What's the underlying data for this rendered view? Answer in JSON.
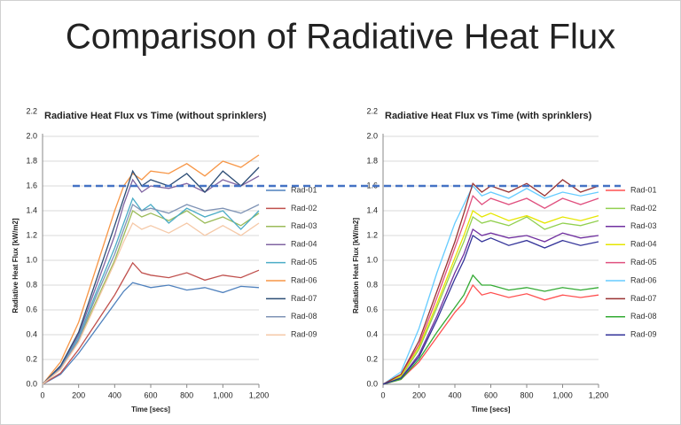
{
  "title": "Comparison of Radiative Heat Flux",
  "threshold_line": {
    "value": 1.6,
    "color": "#4472c4"
  },
  "chart_data": [
    {
      "type": "line",
      "title": "Radiative Heat Flux vs Time (without sprinklers)",
      "x_label": "Time [secs]",
      "y_label": "Radiative Heat Flux [kW/m2]",
      "xlim": [
        0,
        1200
      ],
      "xticks": [
        0,
        200,
        400,
        600,
        800,
        {
          "value": 1000,
          "label": "1,000"
        },
        {
          "value": 1200,
          "label": "1,200"
        }
      ],
      "ylim": [
        0,
        2.2
      ],
      "yticks": [
        {
          "value": 0,
          "label": "0.0"
        },
        {
          "value": 0.2,
          "label": "0.2"
        },
        {
          "value": 0.4,
          "label": "0.4"
        },
        {
          "value": 0.6,
          "label": "0.6"
        },
        {
          "value": 0.8,
          "label": "0.8"
        },
        {
          "value": 1.0,
          "label": "1.0"
        },
        {
          "value": 1.2,
          "label": "1.2"
        },
        {
          "value": 1.4,
          "label": "1.4"
        },
        {
          "value": 1.6,
          "label": "1.6"
        },
        {
          "value": 1.8,
          "label": "1.8"
        },
        {
          "value": 2.0,
          "label": "2.0"
        },
        2.2
      ],
      "grid": true,
      "legend": "right",
      "x": [
        0,
        100,
        200,
        300,
        400,
        450,
        500,
        550,
        600,
        700,
        800,
        900,
        1000,
        1100,
        1200
      ],
      "series": [
        {
          "name": "Rad-01",
          "color": "#4f81bd",
          "values": [
            0,
            0.08,
            0.25,
            0.45,
            0.65,
            0.75,
            0.82,
            0.8,
            0.78,
            0.8,
            0.76,
            0.78,
            0.74,
            0.79,
            0.78
          ]
        },
        {
          "name": "Rad-02",
          "color": "#c0504d",
          "values": [
            0,
            0.09,
            0.28,
            0.5,
            0.72,
            0.85,
            0.98,
            0.9,
            0.88,
            0.86,
            0.9,
            0.84,
            0.88,
            0.86,
            0.92
          ]
        },
        {
          "name": "Rad-03",
          "color": "#9bbb59",
          "values": [
            0,
            0.12,
            0.35,
            0.68,
            1.0,
            1.2,
            1.4,
            1.35,
            1.38,
            1.32,
            1.4,
            1.3,
            1.35,
            1.28,
            1.38
          ]
        },
        {
          "name": "Rad-04",
          "color": "#8064a2",
          "values": [
            0,
            0.14,
            0.4,
            0.8,
            1.2,
            1.45,
            1.65,
            1.55,
            1.6,
            1.58,
            1.62,
            1.55,
            1.65,
            1.6,
            1.68
          ]
        },
        {
          "name": "Rad-05",
          "color": "#4bacc6",
          "values": [
            0,
            0.13,
            0.38,
            0.75,
            1.1,
            1.3,
            1.5,
            1.4,
            1.45,
            1.3,
            1.42,
            1.35,
            1.4,
            1.25,
            1.4
          ]
        },
        {
          "name": "Rad-06",
          "color": "#f79646",
          "values": [
            0,
            0.18,
            0.5,
            0.95,
            1.4,
            1.6,
            1.7,
            1.65,
            1.72,
            1.7,
            1.78,
            1.68,
            1.8,
            1.75,
            1.85
          ]
        },
        {
          "name": "Rad-07",
          "color": "#2c4d75",
          "values": [
            0,
            0.15,
            0.42,
            0.85,
            1.28,
            1.5,
            1.72,
            1.6,
            1.65,
            1.6,
            1.7,
            1.55,
            1.72,
            1.6,
            1.75
          ]
        },
        {
          "name": "Rad-08",
          "color": "#7f93b5",
          "values": [
            0,
            0.13,
            0.36,
            0.72,
            1.05,
            1.25,
            1.45,
            1.4,
            1.42,
            1.38,
            1.45,
            1.4,
            1.42,
            1.38,
            1.45
          ]
        },
        {
          "name": "Rad-09",
          "color": "#f5c9a8",
          "values": [
            0,
            0.12,
            0.34,
            0.66,
            0.98,
            1.15,
            1.3,
            1.25,
            1.28,
            1.22,
            1.3,
            1.2,
            1.28,
            1.2,
            1.3
          ]
        }
      ]
    },
    {
      "type": "line",
      "title": "Radiative Heat Flux vs Time  (with sprinklers)",
      "x_label": "Time [secs]",
      "y_label": "Radiation Heat Flux [kW/m2]",
      "xlim": [
        0,
        1200
      ],
      "xticks": [
        0,
        200,
        400,
        600,
        800,
        {
          "value": 1000,
          "label": "1,000"
        },
        {
          "value": 1200,
          "label": "1,200"
        }
      ],
      "ylim": [
        0,
        2.2
      ],
      "yticks": [
        {
          "value": 0,
          "label": "0.0"
        },
        {
          "value": 0.2,
          "label": "0.2"
        },
        {
          "value": 0.4,
          "label": "0.4"
        },
        {
          "value": 0.6,
          "label": "0.6"
        },
        {
          "value": 0.8,
          "label": "0.8"
        },
        {
          "value": 1.0,
          "label": "1.0"
        },
        {
          "value": 1.2,
          "label": "1.2"
        },
        {
          "value": 1.4,
          "label": "1.4"
        },
        {
          "value": 1.6,
          "label": "1.6"
        },
        {
          "value": 1.8,
          "label": "1.8"
        },
        {
          "value": 2.0,
          "label": "2.0"
        },
        2.2
      ],
      "grid": true,
      "legend": "right",
      "x": [
        0,
        100,
        200,
        300,
        400,
        450,
        500,
        550,
        600,
        700,
        800,
        900,
        1000,
        1100,
        1200
      ],
      "series": [
        {
          "name": "Rad-01",
          "color": "#ff5050",
          "values": [
            0,
            0.04,
            0.18,
            0.38,
            0.58,
            0.66,
            0.8,
            0.72,
            0.74,
            0.7,
            0.73,
            0.68,
            0.72,
            0.7,
            0.72
          ]
        },
        {
          "name": "Rad-02",
          "color": "#92d050",
          "values": [
            0,
            0.06,
            0.28,
            0.62,
            0.98,
            1.15,
            1.35,
            1.3,
            1.32,
            1.28,
            1.35,
            1.25,
            1.3,
            1.28,
            1.32
          ]
        },
        {
          "name": "Rad-03",
          "color": "#7030a0",
          "values": [
            0,
            0.05,
            0.24,
            0.55,
            0.9,
            1.05,
            1.25,
            1.2,
            1.22,
            1.18,
            1.2,
            1.15,
            1.22,
            1.18,
            1.2
          ]
        },
        {
          "name": "Rad-04",
          "color": "#e6e600",
          "values": [
            0,
            0.07,
            0.3,
            0.65,
            1.02,
            1.2,
            1.4,
            1.35,
            1.38,
            1.32,
            1.36,
            1.3,
            1.35,
            1.32,
            1.36
          ]
        },
        {
          "name": "Rad-05",
          "color": "#e0507f",
          "values": [
            0,
            0.08,
            0.32,
            0.7,
            1.1,
            1.3,
            1.52,
            1.45,
            1.5,
            1.45,
            1.5,
            1.42,
            1.5,
            1.45,
            1.5
          ]
        },
        {
          "name": "Rad-06",
          "color": "#66ccff",
          "values": [
            0,
            0.1,
            0.45,
            0.9,
            1.3,
            1.45,
            1.6,
            1.52,
            1.55,
            1.5,
            1.58,
            1.5,
            1.55,
            1.52,
            1.55
          ]
        },
        {
          "name": "Rad-07",
          "color": "#993333",
          "values": [
            0,
            0.08,
            0.35,
            0.75,
            1.15,
            1.38,
            1.62,
            1.55,
            1.6,
            1.55,
            1.62,
            1.52,
            1.65,
            1.55,
            1.6
          ]
        },
        {
          "name": "Rad-08",
          "color": "#33aa33",
          "values": [
            0,
            0.04,
            0.2,
            0.42,
            0.62,
            0.72,
            0.88,
            0.8,
            0.8,
            0.76,
            0.78,
            0.75,
            0.78,
            0.76,
            0.78
          ]
        },
        {
          "name": "Rad-09",
          "color": "#333399",
          "values": [
            0,
            0.05,
            0.22,
            0.52,
            0.85,
            1.0,
            1.2,
            1.15,
            1.18,
            1.12,
            1.16,
            1.1,
            1.16,
            1.12,
            1.15
          ]
        }
      ]
    }
  ]
}
